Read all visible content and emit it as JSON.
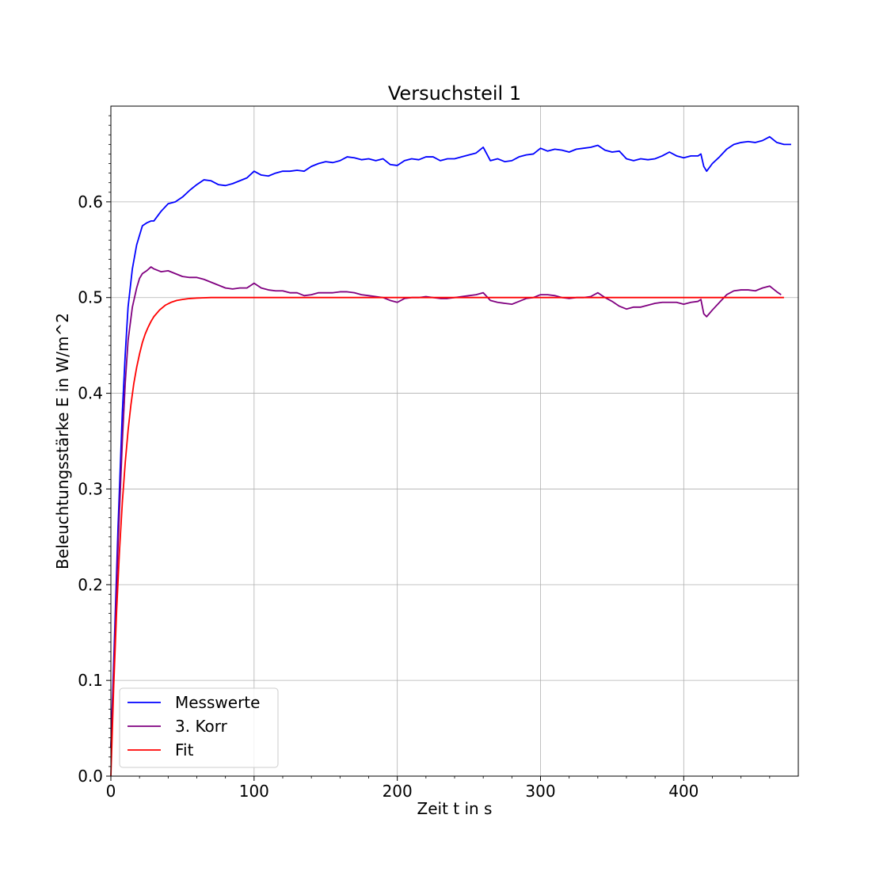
{
  "chart_data": {
    "type": "line",
    "title": "Versuchsteil 1",
    "xlabel": "Zeit t in s",
    "ylabel": "Beleuchtungsstärke E in W/m^2",
    "xlim": [
      0,
      480
    ],
    "ylim": [
      0,
      0.7
    ],
    "xticks": [
      0,
      100,
      200,
      300,
      400
    ],
    "yticks": [
      0.0,
      0.1,
      0.2,
      0.3,
      0.4,
      0.5,
      0.6
    ],
    "xtick_labels": [
      "0",
      "100",
      "200",
      "300",
      "400"
    ],
    "ytick_labels": [
      "0.0",
      "0.1",
      "0.2",
      "0.3",
      "0.4",
      "0.5",
      "0.6"
    ],
    "grid": true,
    "legend_position": "lower-left",
    "series": [
      {
        "name": "Messwerte",
        "color": "#0000ff",
        "x": [
          0,
          2,
          5,
          8,
          10,
          12,
          15,
          18,
          20,
          22,
          25,
          28,
          30,
          35,
          40,
          45,
          50,
          55,
          60,
          65,
          70,
          75,
          80,
          85,
          90,
          95,
          100,
          105,
          110,
          115,
          120,
          125,
          130,
          135,
          140,
          145,
          150,
          155,
          160,
          165,
          170,
          175,
          180,
          185,
          190,
          195,
          200,
          205,
          210,
          215,
          220,
          225,
          230,
          235,
          240,
          245,
          250,
          255,
          260,
          265,
          270,
          275,
          280,
          285,
          290,
          295,
          300,
          305,
          310,
          315,
          320,
          325,
          330,
          335,
          340,
          345,
          350,
          355,
          360,
          365,
          370,
          375,
          380,
          385,
          390,
          395,
          400,
          405,
          410,
          412,
          414,
          416,
          420,
          425,
          430,
          435,
          440,
          445,
          450,
          455,
          460,
          465,
          470,
          475
        ],
        "y": [
          0.03,
          0.12,
          0.26,
          0.38,
          0.44,
          0.49,
          0.53,
          0.555,
          0.565,
          0.575,
          0.578,
          0.58,
          0.58,
          0.59,
          0.598,
          0.6,
          0.605,
          0.612,
          0.618,
          0.623,
          0.622,
          0.618,
          0.617,
          0.619,
          0.622,
          0.625,
          0.632,
          0.628,
          0.627,
          0.63,
          0.632,
          0.632,
          0.633,
          0.632,
          0.637,
          0.64,
          0.642,
          0.641,
          0.643,
          0.647,
          0.646,
          0.644,
          0.645,
          0.643,
          0.645,
          0.639,
          0.638,
          0.643,
          0.645,
          0.644,
          0.647,
          0.647,
          0.643,
          0.645,
          0.645,
          0.647,
          0.649,
          0.651,
          0.657,
          0.643,
          0.645,
          0.642,
          0.643,
          0.647,
          0.649,
          0.65,
          0.656,
          0.653,
          0.655,
          0.654,
          0.652,
          0.655,
          0.656,
          0.657,
          0.659,
          0.654,
          0.652,
          0.653,
          0.645,
          0.643,
          0.645,
          0.644,
          0.645,
          0.648,
          0.652,
          0.648,
          0.646,
          0.648,
          0.648,
          0.65,
          0.637,
          0.632,
          0.64,
          0.647,
          0.655,
          0.66,
          0.662,
          0.663,
          0.662,
          0.664,
          0.668,
          0.662,
          0.66,
          0.66
        ]
      },
      {
        "name": "3. Korr",
        "color": "#800080",
        "x": [
          0,
          2,
          5,
          8,
          10,
          12,
          15,
          18,
          20,
          22,
          25,
          28,
          30,
          35,
          40,
          45,
          50,
          55,
          60,
          65,
          70,
          75,
          80,
          85,
          90,
          95,
          100,
          105,
          110,
          115,
          120,
          125,
          130,
          135,
          140,
          145,
          150,
          155,
          160,
          165,
          170,
          175,
          180,
          185,
          190,
          195,
          200,
          205,
          210,
          215,
          220,
          225,
          230,
          235,
          240,
          245,
          250,
          255,
          260,
          265,
          270,
          275,
          280,
          285,
          290,
          295,
          300,
          305,
          310,
          315,
          320,
          325,
          330,
          335,
          340,
          345,
          350,
          355,
          360,
          365,
          370,
          375,
          380,
          385,
          390,
          395,
          400,
          405,
          410,
          412,
          414,
          416,
          420,
          425,
          430,
          435,
          440,
          445,
          450,
          455,
          460,
          465,
          468
        ],
        "y": [
          0.03,
          0.11,
          0.24,
          0.35,
          0.41,
          0.455,
          0.49,
          0.51,
          0.52,
          0.525,
          0.528,
          0.532,
          0.53,
          0.527,
          0.528,
          0.525,
          0.522,
          0.521,
          0.521,
          0.519,
          0.516,
          0.513,
          0.51,
          0.509,
          0.51,
          0.51,
          0.515,
          0.51,
          0.508,
          0.507,
          0.507,
          0.505,
          0.505,
          0.502,
          0.503,
          0.505,
          0.505,
          0.505,
          0.506,
          0.506,
          0.505,
          0.503,
          0.502,
          0.501,
          0.5,
          0.497,
          0.495,
          0.499,
          0.5,
          0.5,
          0.501,
          0.5,
          0.499,
          0.499,
          0.5,
          0.501,
          0.502,
          0.503,
          0.505,
          0.497,
          0.495,
          0.494,
          0.493,
          0.496,
          0.499,
          0.5,
          0.503,
          0.503,
          0.502,
          0.5,
          0.499,
          0.5,
          0.5,
          0.501,
          0.505,
          0.5,
          0.496,
          0.491,
          0.488,
          0.49,
          0.49,
          0.492,
          0.494,
          0.495,
          0.495,
          0.495,
          0.493,
          0.495,
          0.496,
          0.498,
          0.483,
          0.48,
          0.487,
          0.495,
          0.503,
          0.507,
          0.508,
          0.508,
          0.507,
          0.51,
          0.512,
          0.506,
          0.503
        ]
      },
      {
        "name": "Fit",
        "color": "#ff0000",
        "x": [
          0,
          2,
          4,
          6,
          8,
          10,
          12,
          14,
          16,
          18,
          20,
          22,
          24,
          26,
          28,
          30,
          34,
          38,
          42,
          46,
          50,
          55,
          60,
          70,
          80,
          100,
          150,
          200,
          250,
          300,
          350,
          400,
          450,
          470
        ],
        "y": [
          0.0,
          0.095,
          0.172,
          0.235,
          0.286,
          0.327,
          0.361,
          0.388,
          0.41,
          0.427,
          0.441,
          0.453,
          0.462,
          0.469,
          0.475,
          0.48,
          0.487,
          0.492,
          0.495,
          0.497,
          0.498,
          0.499,
          0.4995,
          0.5,
          0.5,
          0.5,
          0.5,
          0.5,
          0.5,
          0.5,
          0.5,
          0.5,
          0.5,
          0.5
        ]
      }
    ]
  }
}
